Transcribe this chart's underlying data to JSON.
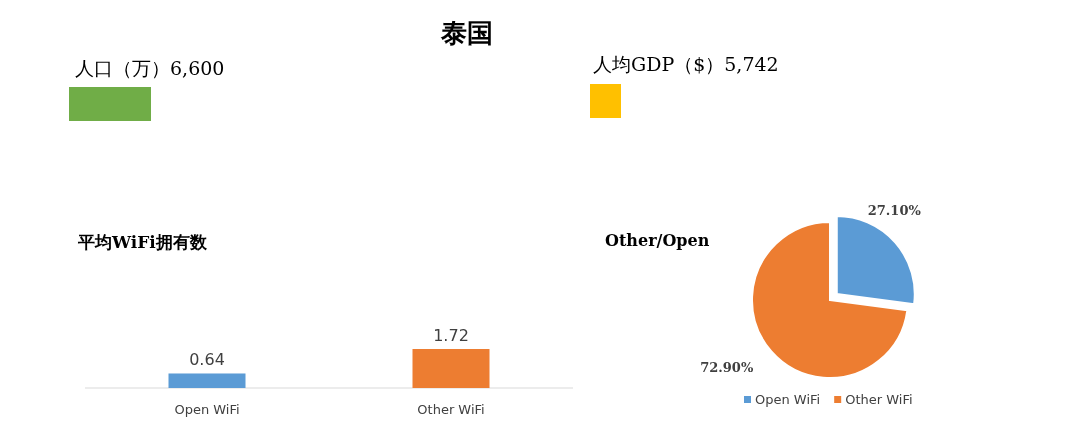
{
  "chart_data": [
    {
      "type": "other",
      "title": "泰国"
    },
    {
      "type": "other",
      "title": "人口（万）6,600",
      "color": "#70ad47"
    },
    {
      "type": "other",
      "title": "人均GDP（$）5,742",
      "color": "#ffc000"
    },
    {
      "type": "bar",
      "title": "平均WiFi拥有数",
      "categories": [
        "Open WiFi",
        "Other WiFi"
      ],
      "values": [
        0.64,
        1.72
      ],
      "colors": [
        "#5b9bd5",
        "#ed7d31"
      ],
      "data_labels": true
    },
    {
      "type": "pie",
      "title": "Other/Open",
      "categories": [
        "Open WiFi",
        "Other WiFi"
      ],
      "values": [
        27.1,
        72.9
      ],
      "value_labels": [
        "27.10%",
        "72.90%"
      ],
      "colors": [
        "#5b9bd5",
        "#ed7d31"
      ],
      "legend": "bottom"
    }
  ]
}
